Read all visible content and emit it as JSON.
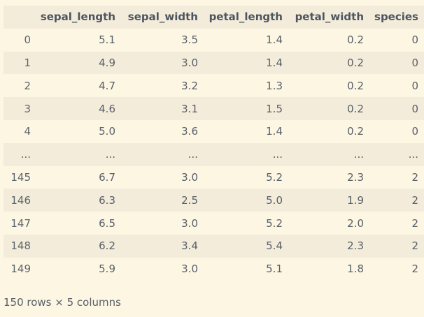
{
  "table": {
    "columns": [
      "sepal_length",
      "sepal_width",
      "petal_length",
      "petal_width",
      "species"
    ],
    "rows": [
      [
        "0",
        "5.1",
        "3.5",
        "1.4",
        "0.2",
        "0"
      ],
      [
        "1",
        "4.9",
        "3.0",
        "1.4",
        "0.2",
        "0"
      ],
      [
        "2",
        "4.7",
        "3.2",
        "1.3",
        "0.2",
        "0"
      ],
      [
        "3",
        "4.6",
        "3.1",
        "1.5",
        "0.2",
        "0"
      ],
      [
        "4",
        "5.0",
        "3.6",
        "1.4",
        "0.2",
        "0"
      ],
      [
        "...",
        "...",
        "...",
        "...",
        "...",
        "..."
      ],
      [
        "145",
        "6.7",
        "3.0",
        "5.2",
        "2.3",
        "2"
      ],
      [
        "146",
        "6.3",
        "2.5",
        "5.0",
        "1.9",
        "2"
      ],
      [
        "147",
        "6.5",
        "3.0",
        "5.2",
        "2.0",
        "2"
      ],
      [
        "148",
        "6.2",
        "3.4",
        "5.4",
        "2.3",
        "2"
      ],
      [
        "149",
        "5.9",
        "3.0",
        "5.1",
        "1.8",
        "2"
      ]
    ],
    "footer": "150 rows × 5 columns"
  }
}
